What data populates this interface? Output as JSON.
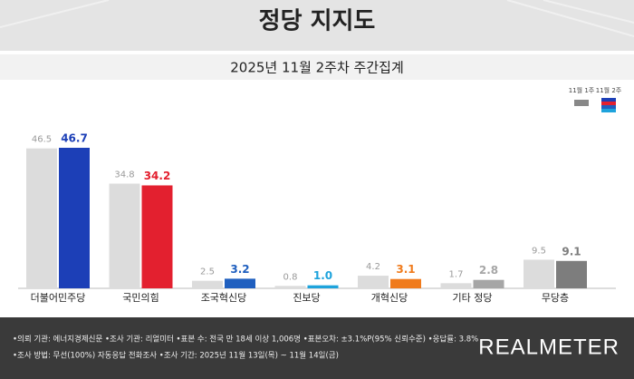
{
  "chart_data": {
    "type": "bar",
    "title": "정당 지지도",
    "subtitle": "2025년 11월 2주차 주간집계",
    "categories": [
      "더불어민주당",
      "국민의힘",
      "조국혁신당",
      "진보당",
      "개혁신당",
      "기타 정당",
      "무당층"
    ],
    "series": [
      {
        "name": "11월 1주",
        "color": "#dcdcdc",
        "label_color": "#9a9a9a",
        "values": [
          46.5,
          34.8,
          2.5,
          0.8,
          4.2,
          1.7,
          9.5
        ],
        "value_labels": [
          "46.5",
          "34.8",
          "2.5",
          "0.8",
          "4.2",
          "1.7",
          "9.5"
        ]
      },
      {
        "name": "11월 2주",
        "colors": [
          "#1c3fb7",
          "#e3202f",
          "#1f5fbf",
          "#1ea3dc",
          "#f07b1c",
          "#a6a6a6",
          "#7d7d7d"
        ],
        "values": [
          46.7,
          34.2,
          3.2,
          1.0,
          3.1,
          2.8,
          9.1
        ],
        "value_labels": [
          "46.7",
          "34.2",
          "3.2",
          "1.0",
          "3.1",
          "2.8",
          "9.1"
        ]
      }
    ]
  },
  "footer": {
    "lines": [
      "•의뢰 기관: 에너지경제신문 •조사 기관: 리얼미터 •표본 수: 전국 만 18세 이상 1,006명 •표본오차: ±3.1%P(95% 신뢰수준) •응답률: 3.8%",
      "•조사 방법: 무선(100%) 자동응답 전화조사 •조사 기간: 2025년 11월 13일(목) ~ 11월 14일(금)"
    ],
    "brand": "REALMETER"
  }
}
